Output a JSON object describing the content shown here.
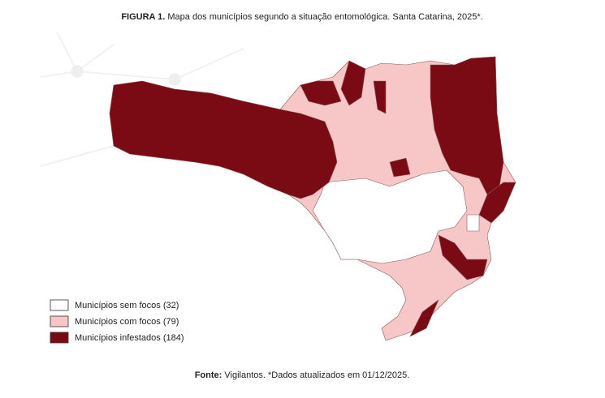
{
  "figure": {
    "label": "FIGURA 1.",
    "caption": "Mapa dos municípios segundo a situação entomológica. Santa Catarina, 2025*."
  },
  "legend": [
    {
      "label": "Municípios sem focos (32)",
      "color": "#ffffff"
    },
    {
      "label": "Municípios com focos (79)",
      "color": "#f7c6c6"
    },
    {
      "label": "Municípios infestados (184)",
      "color": "#7a0a14"
    }
  ],
  "source": {
    "label": "Fonte:",
    "text": "Vigilantos. *Dados atualizados em 01/12/2025."
  }
}
